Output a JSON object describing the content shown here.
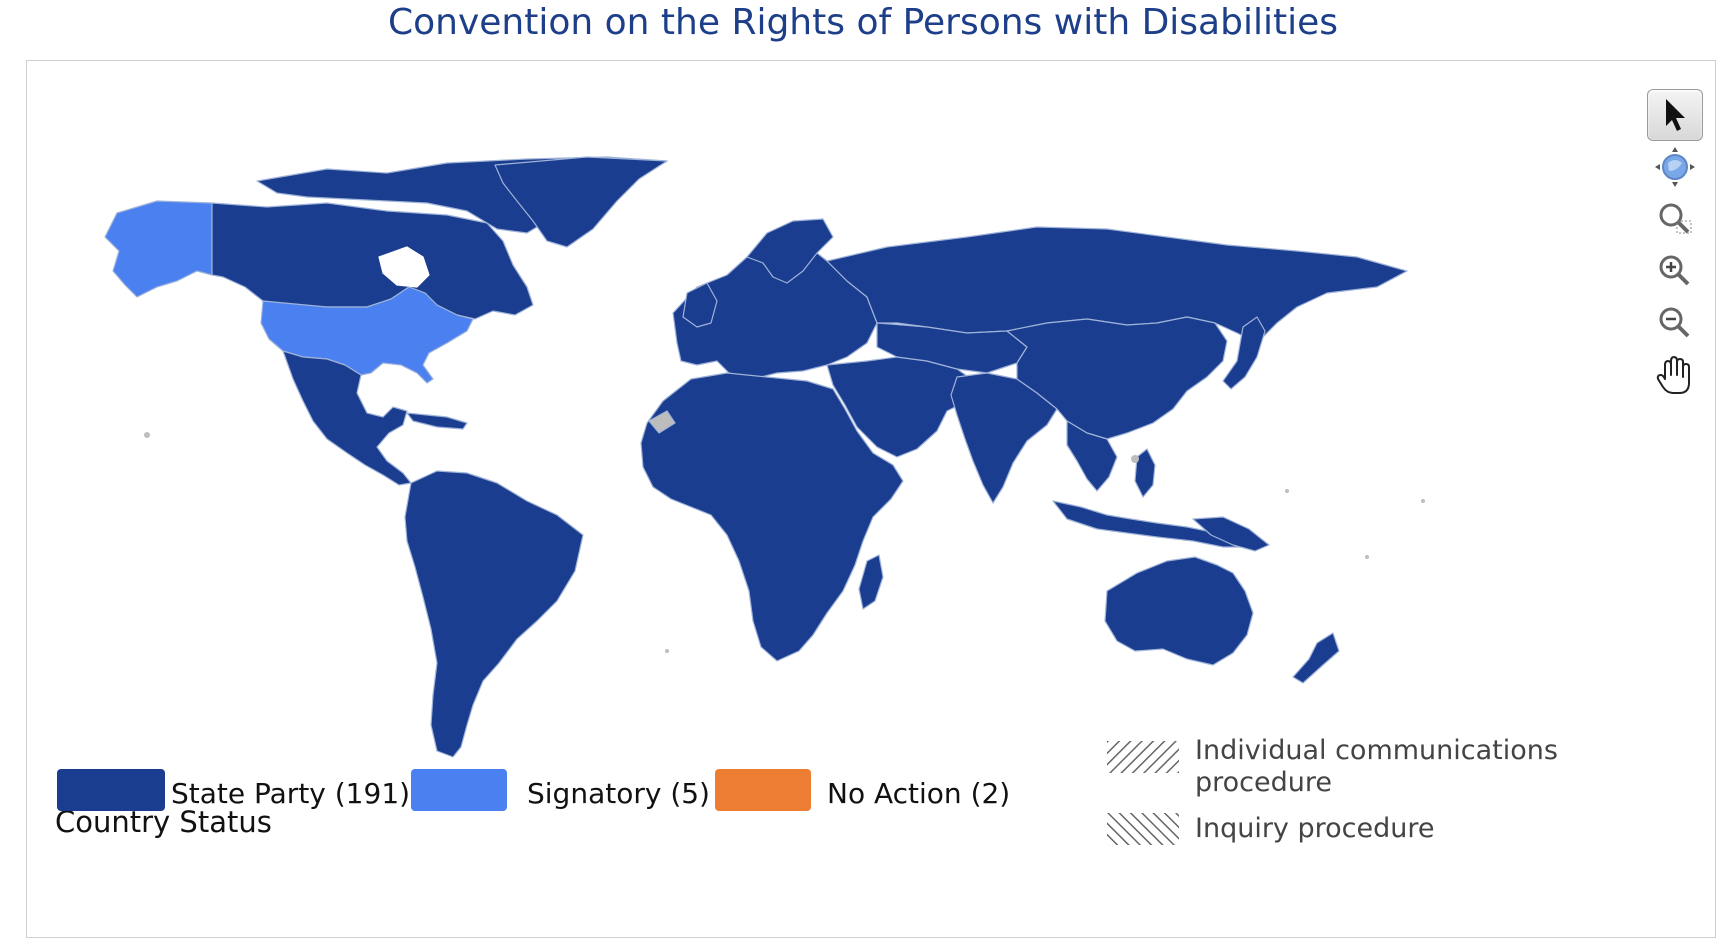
{
  "title": "Convention on the Rights of Persons with Disabilities",
  "map": {
    "background": "#ffffff",
    "region_colors": {
      "state_party": "#1b3d8f",
      "signatory": "#4a80f0",
      "no_action": "#ee7d34",
      "no_data": "#bdbdbd"
    },
    "toolbar": [
      {
        "id": "select",
        "icon": "cursor-arrow-icon",
        "active": true
      },
      {
        "id": "pan-globe",
        "icon": "globe-icon",
        "active": false
      },
      {
        "id": "zoom-box",
        "icon": "zoom-box-icon",
        "active": false
      },
      {
        "id": "zoom-in",
        "icon": "zoom-in-icon",
        "active": false
      },
      {
        "id": "zoom-out",
        "icon": "zoom-out-icon",
        "active": false
      },
      {
        "id": "pan-hand",
        "icon": "hand-icon",
        "active": false
      }
    ]
  },
  "legend": {
    "title": "Country Status",
    "items": [
      {
        "label": "State Party (191)",
        "color": "#1b3d8f"
      },
      {
        "label": "Signatory (5)",
        "color": "#4a80f0"
      },
      {
        "label": "No Action (2)",
        "color": "#ee7d34"
      }
    ],
    "procedures": [
      {
        "label_line1": "Individual communications",
        "label_line2": "procedure",
        "pattern": "diagonal-hatch"
      },
      {
        "label_line1": "Inquiry procedure",
        "label_line2": "",
        "pattern": "reverse-diagonal-hatch"
      }
    ]
  }
}
